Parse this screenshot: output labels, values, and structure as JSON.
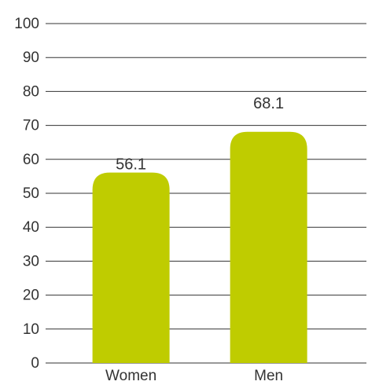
{
  "chart_data": {
    "type": "bar",
    "title": "",
    "xlabel": "",
    "ylabel": "",
    "categories": [
      "Women",
      "Men"
    ],
    "values": [
      56.1,
      68.1
    ],
    "data_labels": [
      "56.1",
      "68.1"
    ],
    "y_ticks": [
      0,
      10,
      20,
      30,
      40,
      50,
      60,
      70,
      80,
      90,
      100
    ],
    "ylim": [
      0,
      100
    ],
    "grid": true,
    "legend": "none",
    "bar_color": "#bfcc00"
  }
}
